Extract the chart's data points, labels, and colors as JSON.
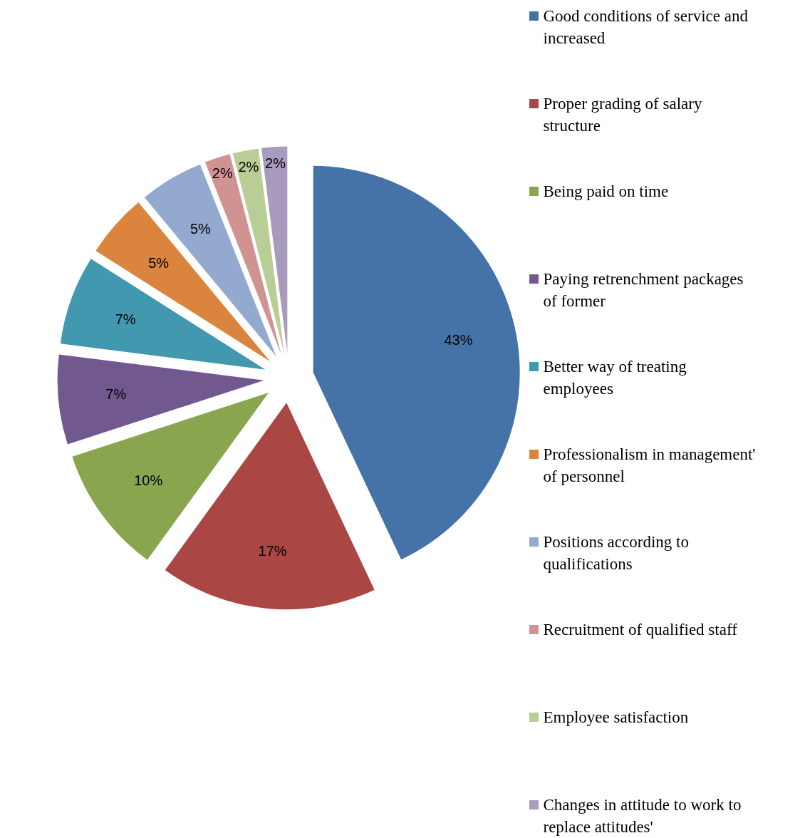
{
  "chart_data": {
    "type": "pie",
    "categories": [
      "Good conditions of service and increased",
      "Proper grading of salary structure",
      "Being paid on time",
      "Paying retrenchment packages of former",
      "Better way of treating employees",
      "Professionalism in management' of personnel",
      "Positions according to qualifications",
      "Recruitment of qualified staff",
      "Employee satisfaction",
      "Changes in attitude to work to replace attitudes'"
    ],
    "values": [
      43,
      17,
      10,
      7,
      7,
      5,
      5,
      2,
      2,
      2
    ],
    "colors": [
      "#4572a7",
      "#aa4643",
      "#89a54e",
      "#71588f",
      "#4198af",
      "#db843d",
      "#93a9cf",
      "#d19392",
      "#b9cd96",
      "#a99bbd"
    ],
    "value_labels": [
      "43%",
      "17%",
      "10%",
      "7%",
      "7%",
      "5%",
      "5%",
      "2%",
      "2%",
      "2%"
    ],
    "legend": "right"
  }
}
